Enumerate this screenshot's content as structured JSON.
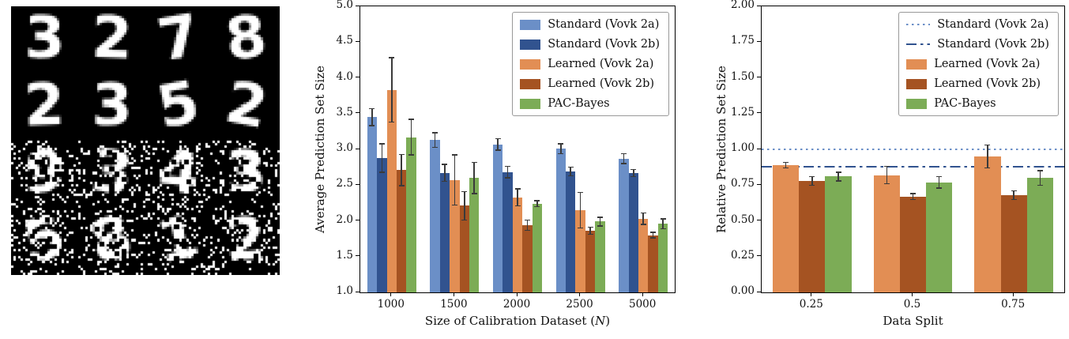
{
  "mnist": {
    "digits": [
      [
        "3",
        "2",
        "7",
        "8"
      ],
      [
        "2",
        "3",
        "5",
        "2"
      ],
      [
        "9",
        "3",
        "4",
        "3"
      ],
      [
        "5",
        "8",
        "1",
        "2"
      ]
    ],
    "noisy_rows": [
      2,
      3
    ]
  },
  "chart_data": [
    {
      "type": "bar",
      "title": "",
      "xlabel_pre": "Size of Calibration Dataset (",
      "xlabel_var": "N",
      "xlabel_post": ")",
      "ylabel": "Average Prediction Set Size",
      "ylim": [
        1.0,
        5.0
      ],
      "ytick_labels": [
        "1.0",
        "1.5",
        "2.0",
        "2.5",
        "3.0",
        "3.5",
        "4.0",
        "4.5",
        "5.0"
      ],
      "grid": false,
      "legend_position": "upper right",
      "categories": [
        "1000",
        "1500",
        "2000",
        "2500",
        "5000"
      ],
      "series": [
        {
          "name": "Standard (Vovk 2a)",
          "color": "#6b8fc7",
          "values": [
            3.45,
            3.13,
            3.07,
            3.01,
            2.87
          ],
          "errors": [
            0.12,
            0.1,
            0.08,
            0.07,
            0.07
          ]
        },
        {
          "name": "Standard (Vovk 2b)",
          "color": "#31538f",
          "values": [
            2.88,
            2.67,
            2.68,
            2.69,
            2.67
          ],
          "errors": [
            0.2,
            0.12,
            0.08,
            0.06,
            0.05
          ]
        },
        {
          "name": "Learned (Vovk 2a)",
          "color": "#e28e54",
          "values": [
            3.83,
            2.57,
            2.33,
            2.15,
            2.03
          ],
          "errors": [
            0.45,
            0.35,
            0.12,
            0.25,
            0.08
          ]
        },
        {
          "name": "Learned (Vovk 2b)",
          "color": "#a55322",
          "values": [
            2.71,
            2.21,
            1.94,
            1.86,
            1.8
          ],
          "errors": [
            0.22,
            0.2,
            0.07,
            0.05,
            0.04
          ]
        },
        {
          "name": "PAC-Bayes",
          "color": "#7cac56",
          "values": [
            3.17,
            2.6,
            2.24,
            1.99,
            1.96
          ],
          "errors": [
            0.25,
            0.22,
            0.04,
            0.06,
            0.07
          ]
        }
      ],
      "legend": [
        {
          "label": "Standard (Vovk 2a)",
          "type": "box",
          "color": "#6b8fc7"
        },
        {
          "label": "Standard (Vovk 2b)",
          "type": "box",
          "color": "#31538f"
        },
        {
          "label": "Learned (Vovk 2a)",
          "type": "box",
          "color": "#e28e54"
        },
        {
          "label": "Learned (Vovk 2b)",
          "type": "box",
          "color": "#a55322"
        },
        {
          "label": "PAC-Bayes",
          "type": "box",
          "color": "#7cac56"
        }
      ]
    },
    {
      "type": "bar",
      "title": "",
      "xlabel_pre": "Data Split",
      "xlabel_var": "",
      "xlabel_post": "",
      "ylabel": "Relative Prediction Set Size",
      "ylim": [
        0.0,
        2.0
      ],
      "ytick_labels": [
        "0.00",
        "0.25",
        "0.50",
        "0.75",
        "1.00",
        "1.25",
        "1.50",
        "1.75",
        "2.00"
      ],
      "grid": false,
      "legend_position": "upper right",
      "categories": [
        "0.25",
        "0.5",
        "0.75"
      ],
      "hlines": [
        {
          "name": "Standard (Vovk 2a)",
          "style": "dotted",
          "color": "#6b8fc7",
          "value": 1.0
        },
        {
          "name": "Standard (Vovk 2b)",
          "style": "dashdot",
          "color": "#31538f",
          "value": 0.88
        }
      ],
      "series": [
        {
          "name": "Learned (Vovk 2a)",
          "color": "#e28e54",
          "values": [
            0.89,
            0.82,
            0.95
          ],
          "errors": [
            0.02,
            0.06,
            0.08
          ]
        },
        {
          "name": "Learned (Vovk 2b)",
          "color": "#a55322",
          "values": [
            0.78,
            0.67,
            0.68
          ],
          "errors": [
            0.03,
            0.02,
            0.03
          ]
        },
        {
          "name": "PAC-Bayes",
          "color": "#7cac56",
          "values": [
            0.81,
            0.77,
            0.8
          ],
          "errors": [
            0.03,
            0.04,
            0.05
          ]
        }
      ],
      "legend": [
        {
          "label": "Standard (Vovk 2a)",
          "type": "dotted",
          "color": "#6b8fc7"
        },
        {
          "label": "Standard (Vovk 2b)",
          "type": "dashdot",
          "color": "#31538f"
        },
        {
          "label": "Learned (Vovk 2a)",
          "type": "box",
          "color": "#e28e54"
        },
        {
          "label": "Learned (Vovk 2b)",
          "type": "box",
          "color": "#a55322"
        },
        {
          "label": "PAC-Bayes",
          "type": "box",
          "color": "#7cac56"
        }
      ]
    }
  ]
}
